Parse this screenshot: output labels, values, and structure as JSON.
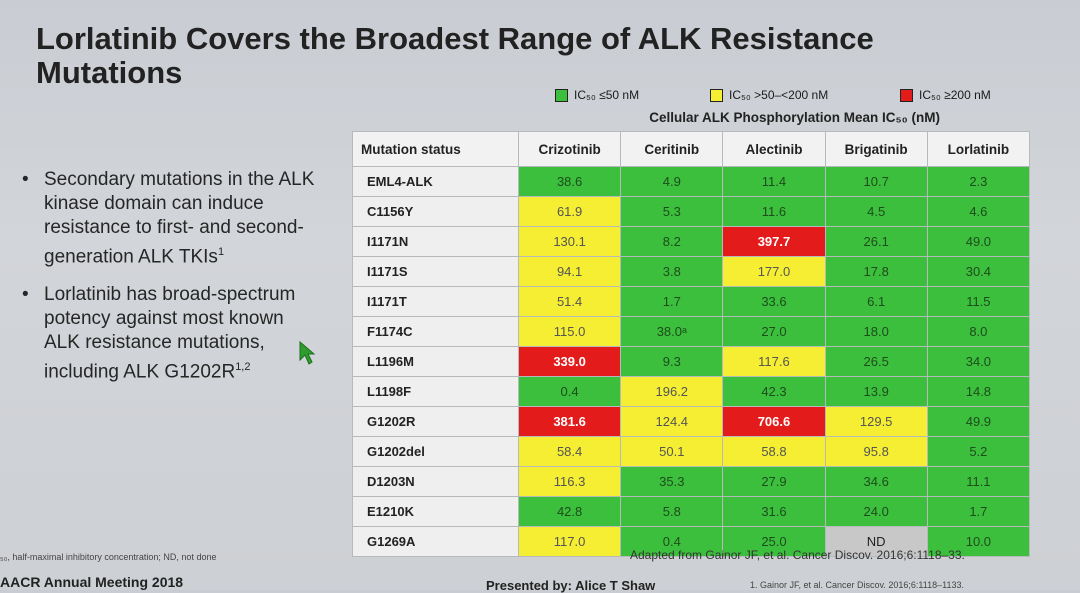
{
  "slide": {
    "title": "Lorlatinib Covers the Broadest Range of ALK Resistance Mutations",
    "bullets": [
      {
        "text": "Secondary mutations in the ALK kinase domain can induce resistance to first- and second-generation ALK TKIs",
        "sup": "1"
      },
      {
        "text": "Lorlatinib has broad-spectrum potency against most known ALK resistance mutations, including ALK G1202R",
        "sup": "1,2"
      }
    ]
  },
  "legend": [
    {
      "label": "IC₅₀ ≤50 nM",
      "color": "#3cbf3c"
    },
    {
      "label": "IC₅₀ >50–<200 nM",
      "color": "#f5ee32"
    },
    {
      "label": "IC₅₀ ≥200 nM",
      "color": "#e41b1b"
    }
  ],
  "table": {
    "caption": "Cellular ALK Phosphorylation Mean IC₅₀ (nM)",
    "headers": [
      "Mutation status",
      "Crizotinib",
      "Ceritinib",
      "Alectinib",
      "Brigatinib",
      "Lorlatinib"
    ],
    "rows": [
      {
        "mutation": "EML4-ALK",
        "values": [
          "38.6",
          "4.9",
          "11.4",
          "10.7",
          "2.3"
        ],
        "levels": [
          "g",
          "g",
          "g",
          "g",
          "g"
        ]
      },
      {
        "mutation": "C1156Y",
        "values": [
          "61.9",
          "5.3",
          "11.6",
          "4.5",
          "4.6"
        ],
        "levels": [
          "y",
          "g",
          "g",
          "g",
          "g"
        ]
      },
      {
        "mutation": "I1171N",
        "values": [
          "130.1",
          "8.2",
          "397.7",
          "26.1",
          "49.0"
        ],
        "levels": [
          "y",
          "g",
          "r",
          "g",
          "g"
        ]
      },
      {
        "mutation": "I1171S",
        "values": [
          "94.1",
          "3.8",
          "177.0",
          "17.8",
          "30.4"
        ],
        "levels": [
          "y",
          "g",
          "y",
          "g",
          "g"
        ]
      },
      {
        "mutation": "I1171T",
        "values": [
          "51.4",
          "1.7",
          "33.6",
          "6.1",
          "11.5"
        ],
        "levels": [
          "y",
          "g",
          "g",
          "g",
          "g"
        ]
      },
      {
        "mutation": "F1174C",
        "values": [
          "115.0",
          "38.0ᵃ",
          "27.0",
          "18.0",
          "8.0"
        ],
        "levels": [
          "y",
          "g",
          "g",
          "g",
          "g"
        ]
      },
      {
        "mutation": "L1196M",
        "values": [
          "339.0",
          "9.3",
          "117.6",
          "26.5",
          "34.0"
        ],
        "levels": [
          "r",
          "g",
          "y",
          "g",
          "g"
        ]
      },
      {
        "mutation": "L1198F",
        "values": [
          "0.4",
          "196.2",
          "42.3",
          "13.9",
          "14.8"
        ],
        "levels": [
          "g",
          "y",
          "g",
          "g",
          "g"
        ]
      },
      {
        "mutation": "G1202R",
        "values": [
          "381.6",
          "124.4",
          "706.6",
          "129.5",
          "49.9"
        ],
        "levels": [
          "r",
          "y",
          "r",
          "y",
          "g"
        ]
      },
      {
        "mutation": "G1202del",
        "values": [
          "58.4",
          "50.1",
          "58.8",
          "95.8",
          "5.2"
        ],
        "levels": [
          "y",
          "y",
          "y",
          "y",
          "g"
        ]
      },
      {
        "mutation": "D1203N",
        "values": [
          "116.3",
          "35.3",
          "27.9",
          "34.6",
          "11.1"
        ],
        "levels": [
          "y",
          "g",
          "g",
          "g",
          "g"
        ]
      },
      {
        "mutation": "E1210K",
        "values": [
          "42.8",
          "5.8",
          "31.6",
          "24.0",
          "1.7"
        ],
        "levels": [
          "g",
          "g",
          "g",
          "g",
          "g"
        ]
      },
      {
        "mutation": "G1269A",
        "values": [
          "117.0",
          "0.4",
          "25.0",
          "ND",
          "10.0"
        ],
        "levels": [
          "y",
          "g",
          "g",
          "n",
          "g"
        ]
      }
    ]
  },
  "footer": {
    "footnote": "₅₀, half-maximal inhibitory concentration; ND, not done",
    "adapted": "Adapted from Gainor JF, et al. Cancer Discov. 2016;6:1118–33.",
    "meeting": "AACR Annual Meeting 2018",
    "presenter": "Presented by: Alice T Shaw",
    "reference": "1. Gainor JF, et al. Cancer Discov. 2016;6:1118–1133."
  },
  "icons": {
    "cursor": "arrow-cursor-icon",
    "cursor_color": "#2e9e2e"
  }
}
